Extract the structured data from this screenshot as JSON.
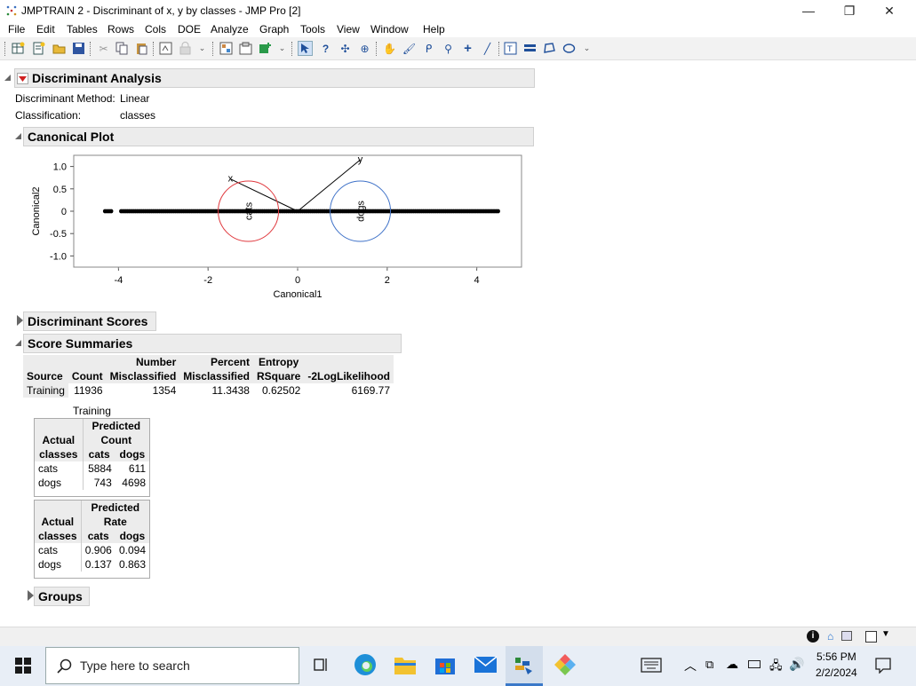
{
  "window": {
    "title": "JMPTRAIN 2 - Discriminant of x, y by classes - JMP Pro [2]",
    "minimize": "—",
    "maximize": "❐",
    "close": "✕"
  },
  "menu": [
    "File",
    "Edit",
    "Tables",
    "Rows",
    "Cols",
    "DOE",
    "Analyze",
    "Graph",
    "Tools",
    "View",
    "Window",
    "Help"
  ],
  "report": {
    "title": "Discriminant Analysis",
    "method_label": "Discriminant Method:",
    "method_value": "Linear",
    "class_label": "Classification:",
    "class_value": "classes",
    "canonical_plot_title": "Canonical Plot",
    "discriminant_scores_title": "Discriminant Scores",
    "score_summaries_title": "Score Summaries",
    "groups_title": "Groups"
  },
  "chart_data": {
    "type": "scatter",
    "xlabel": "Canonical1",
    "ylabel": "Canonical2",
    "xlim": [
      -5,
      5
    ],
    "ylim": [
      -1.25,
      1.25
    ],
    "xticks": [
      -4,
      -2,
      0,
      2,
      4
    ],
    "yticks": [
      1.0,
      0.5,
      0,
      -0.5,
      -1.0
    ],
    "ytick_labels": [
      "1.0",
      "0.5",
      "0",
      "-0.5",
      "-1.0"
    ],
    "points_y": 0,
    "points_x_range": [
      -4.3,
      4.5
    ],
    "biplot_rays": [
      {
        "name": "x",
        "x": -1.5,
        "y": 0.72
      },
      {
        "name": "y",
        "x": 1.4,
        "y": 1.15
      }
    ],
    "groups": [
      {
        "name": "cats",
        "center_x": -1.1,
        "center_y": 0,
        "color": "#e0393e"
      },
      {
        "name": "dogs",
        "center_x": 1.4,
        "center_y": 0,
        "color": "#3f72c8"
      }
    ]
  },
  "score_summary": {
    "headers_top": [
      "",
      "",
      "Number",
      "Percent",
      "Entropy",
      ""
    ],
    "headers_bottom": [
      "Source",
      "Count",
      "Misclassified",
      "Misclassified",
      "RSquare",
      "-2LogLikelihood"
    ],
    "row": [
      "Training",
      "11936",
      "1354",
      "11.3438",
      "0.62502",
      "6169.77"
    ]
  },
  "training_label": "Training",
  "count_table": {
    "hdr_actual": "Actual",
    "hdr_predicted": "Predicted",
    "hdr_sub": "Count",
    "hdr_classes": "classes",
    "cols": [
      "cats",
      "dogs"
    ],
    "rows": [
      {
        "label": "cats",
        "values": [
          "5884",
          "611"
        ]
      },
      {
        "label": "dogs",
        "values": [
          "743",
          "4698"
        ]
      }
    ]
  },
  "rate_table": {
    "hdr_actual": "Actual",
    "hdr_predicted": "Predicted",
    "hdr_sub": "Rate",
    "hdr_classes": "classes",
    "cols": [
      "cats",
      "dogs"
    ],
    "rows": [
      {
        "label": "cats",
        "values": [
          "0.906",
          "0.094"
        ]
      },
      {
        "label": "dogs",
        "values": [
          "0.137",
          "0.863"
        ]
      }
    ]
  },
  "taskbar": {
    "search_placeholder": "Type here to search",
    "time": "5:56 PM",
    "date": "2/2/2024"
  }
}
